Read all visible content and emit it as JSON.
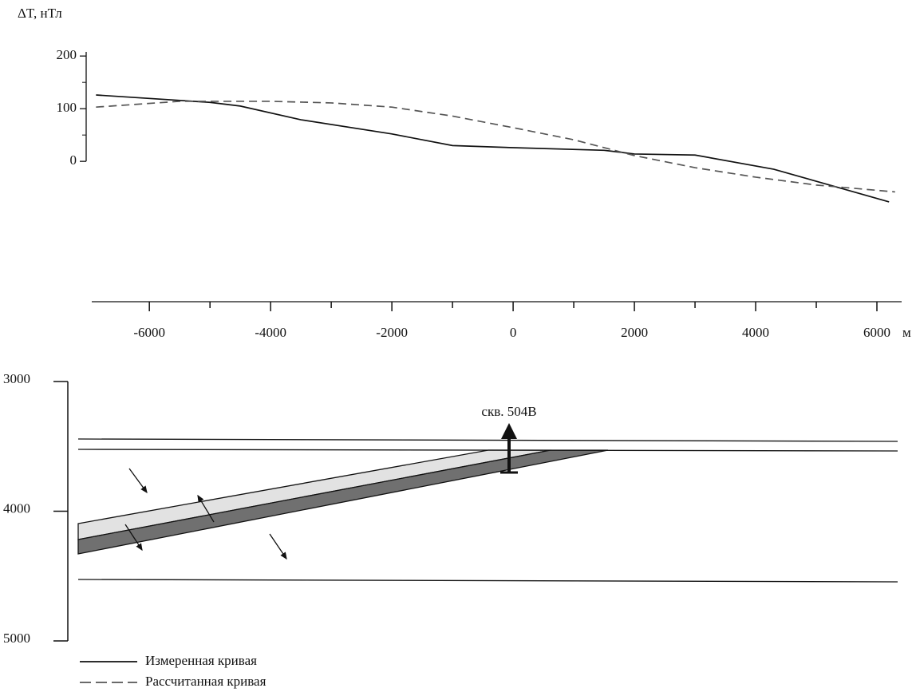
{
  "chart_data": [
    {
      "type": "line",
      "ylabel": "ΔT, нТл",
      "xlabel": "м",
      "xlim": [
        -6950,
        6500
      ],
      "xticks": [
        -6000,
        -4000,
        -2000,
        0,
        2000,
        4000,
        6000
      ],
      "xminorticks": [
        -5000,
        -3000,
        -1000,
        1000,
        3000,
        5000
      ],
      "ylim": [
        -265,
        220
      ],
      "yticks": [
        0,
        100,
        200
      ],
      "yminorticks": [
        50,
        150
      ],
      "legend": "bottom-left",
      "series": [
        {
          "name": "Измеренная кривая",
          "color": "#111111",
          "dash": false,
          "x": [
            -6880,
            -5000,
            -4500,
            -3500,
            -2000,
            -1000,
            0,
            1500,
            2000,
            3000,
            4300,
            6200
          ],
          "values": [
            126,
            112,
            105,
            79,
            52,
            30,
            26,
            21,
            14,
            12,
            -15,
            -77
          ]
        },
        {
          "name": "Рассчитанная кривая",
          "color": "#555555",
          "dash": true,
          "x": [
            -6880,
            -5500,
            -4000,
            -3000,
            -2000,
            -1000,
            0,
            1000,
            2000,
            3000,
            4000,
            5000,
            6300
          ],
          "values": [
            103,
            114,
            114,
            111,
            103,
            86,
            64,
            41,
            11,
            -12,
            -30,
            -45,
            -58
          ]
        }
      ]
    },
    {
      "type": "section",
      "ylim": [
        3000,
        5000
      ],
      "yticks": [
        3000,
        4000,
        5000
      ],
      "annotation": "скв. 504В"
    }
  ]
}
